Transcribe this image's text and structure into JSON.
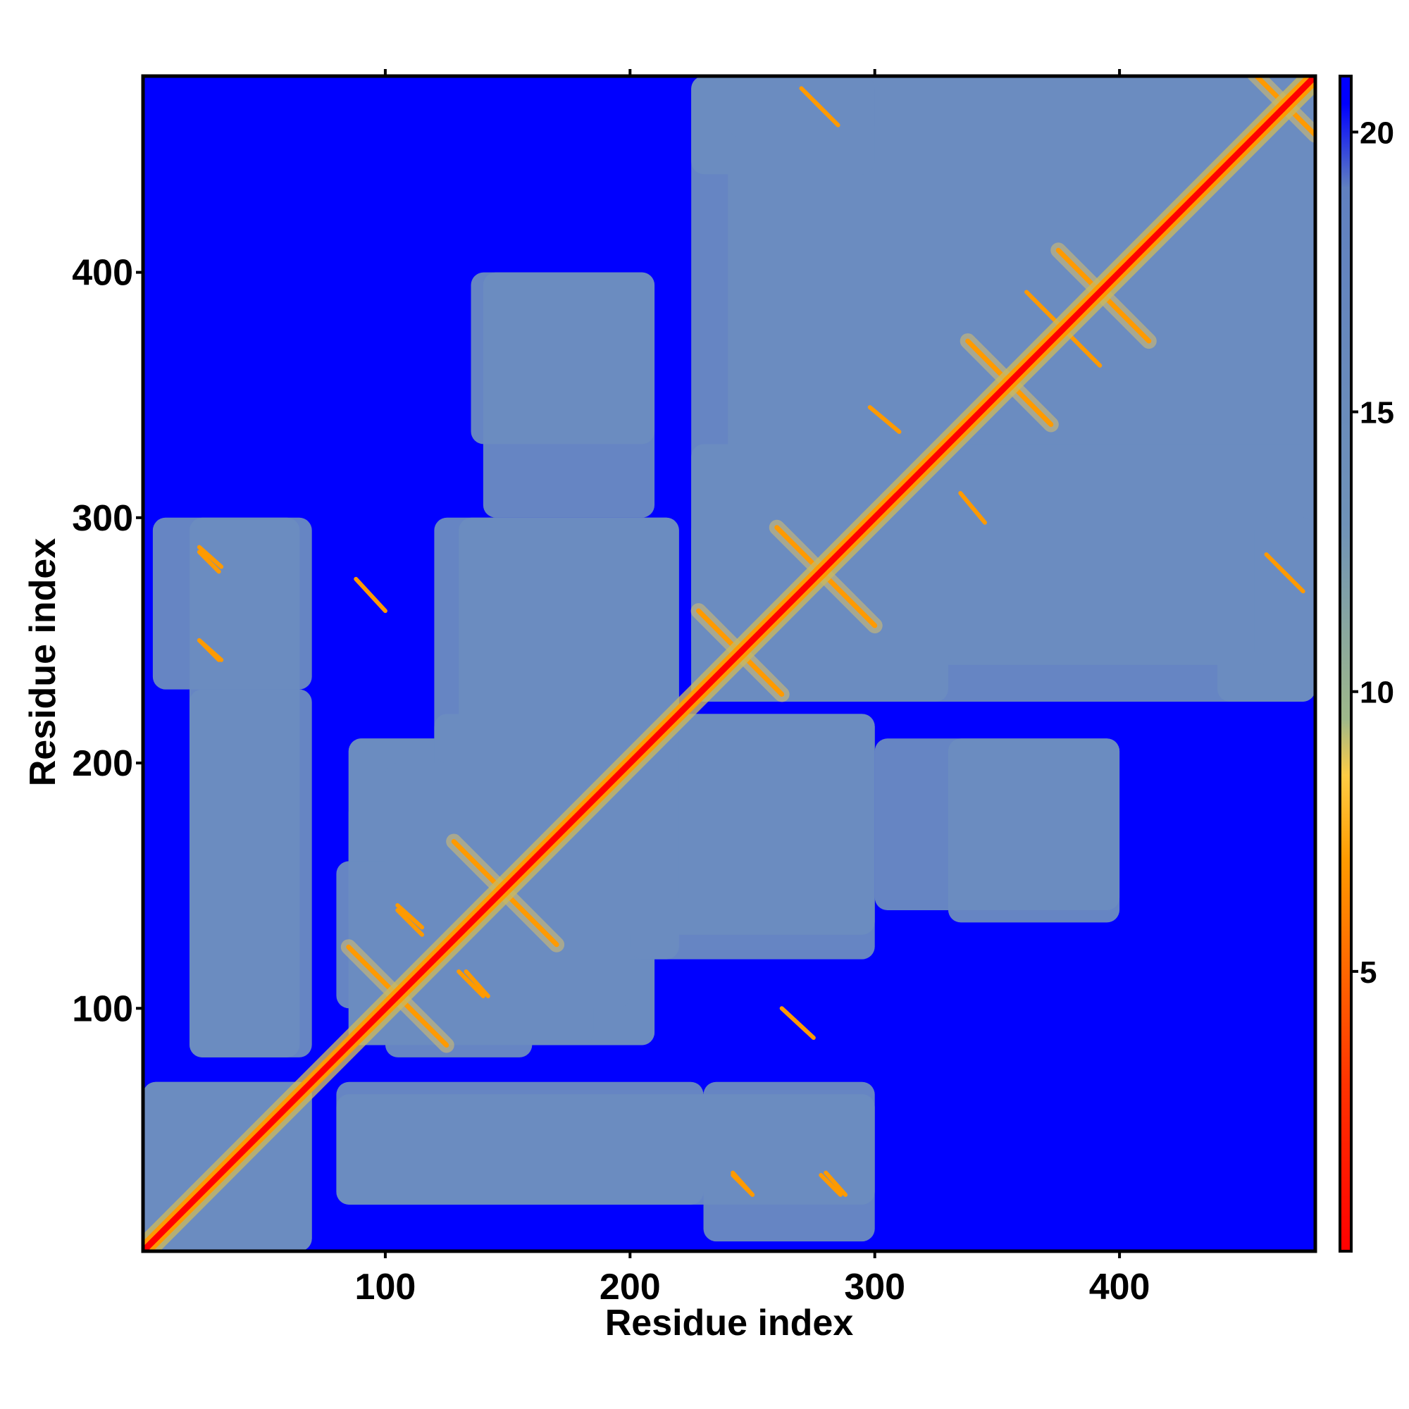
{
  "chart_data": {
    "type": "heatmap",
    "title": "",
    "xlabel": "Residue index",
    "ylabel": "Residue index",
    "n_residues": 480,
    "xlim": [
      1,
      480
    ],
    "ylim": [
      1,
      480
    ],
    "x_ticks": [
      100,
      200,
      300,
      400
    ],
    "y_ticks": [
      100,
      200,
      300,
      400
    ],
    "colorbar": {
      "range": [
        0,
        21
      ],
      "ticks": [
        5,
        10,
        15,
        20
      ],
      "stops": [
        {
          "value": 0,
          "color": "#ff0000"
        },
        {
          "value": 3,
          "color": "#ff3300"
        },
        {
          "value": 7,
          "color": "#ff9a00"
        },
        {
          "value": 8.5,
          "color": "#ffcc44"
        },
        {
          "value": 9.5,
          "color": "#9fb88a"
        },
        {
          "value": 13,
          "color": "#6f92b8"
        },
        {
          "value": 19,
          "color": "#6080c0"
        },
        {
          "value": 20.5,
          "color": "#0000ff"
        },
        {
          "value": 21,
          "color": "#0000ff"
        }
      ]
    },
    "background_color": "#0000ff",
    "contact_color": "#6b8cc0",
    "diagonal_color": "#ff0000",
    "near_color": "#ff9a00",
    "regions": [
      {
        "x": [
          1,
          70
        ],
        "y": [
          1,
          70
        ]
      },
      {
        "x": [
          85,
          210
        ],
        "y": [
          85,
          210
        ]
      },
      {
        "x": [
          85,
          140
        ],
        "y": [
          130,
          185
        ]
      },
      {
        "x": [
          120,
          215
        ],
        "y": [
          125,
          220
        ]
      },
      {
        "x": [
          225,
          300
        ],
        "y": [
          225,
          300
        ]
      },
      {
        "x": [
          225,
          300
        ],
        "y": [
          245,
          330
        ]
      },
      {
        "x": [
          300,
          480
        ],
        "y": [
          300,
          480
        ]
      },
      {
        "x": [
          225,
          480
        ],
        "y": [
          240,
          480
        ]
      },
      {
        "x": [
          330,
          480
        ],
        "y": [
          240,
          330
        ]
      },
      {
        "x": [
          5,
          70
        ],
        "y": [
          230,
          300
        ]
      },
      {
        "x": [
          20,
          70
        ],
        "y": [
          80,
          230
        ]
      },
      {
        "x": [
          80,
          300
        ],
        "y": [
          20,
          65
        ]
      },
      {
        "x": [
          80,
          200
        ],
        "y": [
          100,
          160
        ]
      },
      {
        "x": [
          200,
          300
        ],
        "y": [
          120,
          220
        ]
      },
      {
        "x": [
          140,
          300
        ],
        "y": [
          130,
          220
        ]
      },
      {
        "x": [
          300,
          400
        ],
        "y": [
          140,
          210
        ]
      },
      {
        "x": [
          135,
          210
        ],
        "y": [
          330,
          400
        ]
      },
      {
        "x": [
          225,
          300
        ],
        "y": [
          440,
          480
        ]
      },
      {
        "x": [
          455,
          480
        ],
        "y": [
          240,
          300
        ]
      }
    ],
    "antidiagonals": [
      {
        "center": 105,
        "from": 85,
        "to": 125
      },
      {
        "center": 148,
        "from": 128,
        "to": 170
      },
      {
        "center": 245,
        "from": 228,
        "to": 262
      },
      {
        "center": 278,
        "from": 260,
        "to": 300
      },
      {
        "center": 355,
        "from": 338,
        "to": 372
      },
      {
        "center": 392,
        "from": 375,
        "to": 412
      },
      {
        "center": 468,
        "from": 455,
        "to": 480
      }
    ],
    "contact_lines": [
      {
        "x": [
          24,
          33
        ],
        "y": [
          288,
          280
        ]
      },
      {
        "x": [
          24,
          33
        ],
        "y": [
          250,
          242
        ]
      },
      {
        "x": [
          242,
          250
        ],
        "y": [
          32,
          24
        ]
      },
      {
        "x": [
          278,
          286
        ],
        "y": [
          32,
          24
        ]
      },
      {
        "x": [
          105,
          115
        ],
        "y": [
          140,
          130
        ]
      },
      {
        "x": [
          133,
          142
        ],
        "y": [
          115,
          105
        ]
      },
      {
        "x": [
          262,
          275
        ],
        "y": [
          100,
          88
        ]
      },
      {
        "x": [
          335,
          345
        ],
        "y": [
          310,
          298
        ]
      },
      {
        "x": [
          362,
          376
        ],
        "y": [
          392,
          378
        ]
      },
      {
        "x": [
          460,
          470
        ],
        "y": [
          285,
          275
        ]
      },
      {
        "x": [
          270,
          280
        ],
        "y": [
          475,
          465
        ]
      }
    ]
  }
}
